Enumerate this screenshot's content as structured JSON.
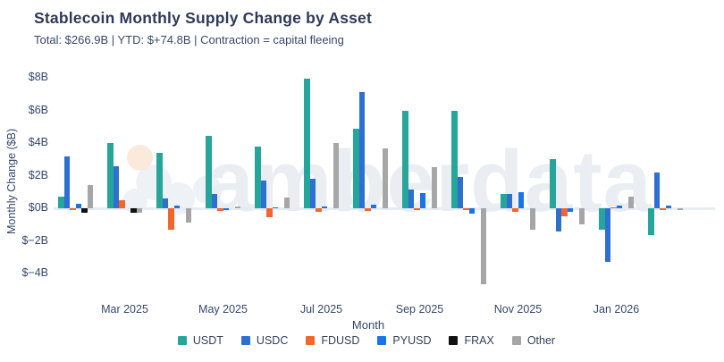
{
  "header": {
    "title": "Stablecoin Monthly Supply Change by Asset",
    "subtitle": "Total: $266.9B | YTD: $+74.8B | Contraction = capital fleeing"
  },
  "watermark": {
    "text": "amberdata"
  },
  "colors": {
    "title": "#2e3a59",
    "axis_text": "#36486b",
    "zero_line": "#e7ecf4",
    "watermark_text": "#eaedf2",
    "watermark_peach": "#fbe9dc",
    "watermark_blob": "#eef2f7"
  },
  "chart_data": {
    "type": "bar",
    "title": "Stablecoin Monthly Supply Change by Asset",
    "subtitle": "Total: $266.9B | YTD: $+74.8B | Contraction = capital fleeing",
    "xlabel": "Month",
    "ylabel": "Monthly Change ($B)",
    "ylim": [
      -4.8,
      8.5
    ],
    "grid": false,
    "legend_position": "bottom",
    "yticks": [
      "$8B",
      "$6B",
      "$4B",
      "$2B",
      "$0B",
      "$−2B",
      "$−4B"
    ],
    "ytick_values": [
      8,
      6,
      4,
      2,
      0,
      -2,
      -4
    ],
    "categories": [
      "Feb 2025",
      "Mar 2025",
      "Apr 2025",
      "May 2025",
      "Jun 2025",
      "Jul 2025",
      "Aug 2025",
      "Sep 2025",
      "Oct 2025",
      "Nov 2025",
      "Dec 2025",
      "Jan 2026",
      "Feb 2026"
    ],
    "xtick_labels": [
      "Mar 2025",
      "May 2025",
      "Jul 2025",
      "Sep 2025",
      "Nov 2025",
      "Jan 2026"
    ],
    "xtick_indices": [
      1,
      3,
      5,
      7,
      9,
      11
    ],
    "series": [
      {
        "name": "USDT",
        "color": "#26a69a",
        "values": [
          0.7,
          4.0,
          3.4,
          4.45,
          3.8,
          7.95,
          4.9,
          6.0,
          6.0,
          0.9,
          3.0,
          -1.3,
          -1.65
        ]
      },
      {
        "name": "USDC",
        "color": "#2e6fd2",
        "values": [
          3.2,
          2.6,
          0.6,
          0.85,
          1.7,
          1.8,
          7.1,
          1.15,
          1.9,
          0.9,
          -1.4,
          -3.3,
          2.2
        ]
      },
      {
        "name": "FDUSD",
        "color": "#f2662d",
        "values": [
          -0.1,
          0.5,
          -1.3,
          -0.15,
          -0.55,
          -0.2,
          -0.15,
          -0.1,
          -0.1,
          -0.2,
          -0.5,
          0.05,
          -0.05
        ]
      },
      {
        "name": "PYUSD",
        "color": "#1a73e8",
        "values": [
          0.3,
          0.0,
          0.15,
          -0.05,
          0.05,
          0.1,
          0.2,
          0.95,
          -0.35,
          1.0,
          -0.2,
          0.15,
          0.15
        ]
      },
      {
        "name": "FRAX",
        "color": "#111111",
        "values": [
          -0.25,
          -0.25,
          0.0,
          0.0,
          0.0,
          0.0,
          0.0,
          0.0,
          0.0,
          0.0,
          0.0,
          0.0,
          0.0
        ]
      },
      {
        "name": "Other",
        "color": "#a6a6a6",
        "values": [
          1.4,
          -0.3,
          -0.9,
          0.1,
          0.65,
          4.0,
          3.65,
          2.5,
          -4.65,
          -1.3,
          -1.0,
          0.7,
          -0.05
        ]
      }
    ]
  }
}
